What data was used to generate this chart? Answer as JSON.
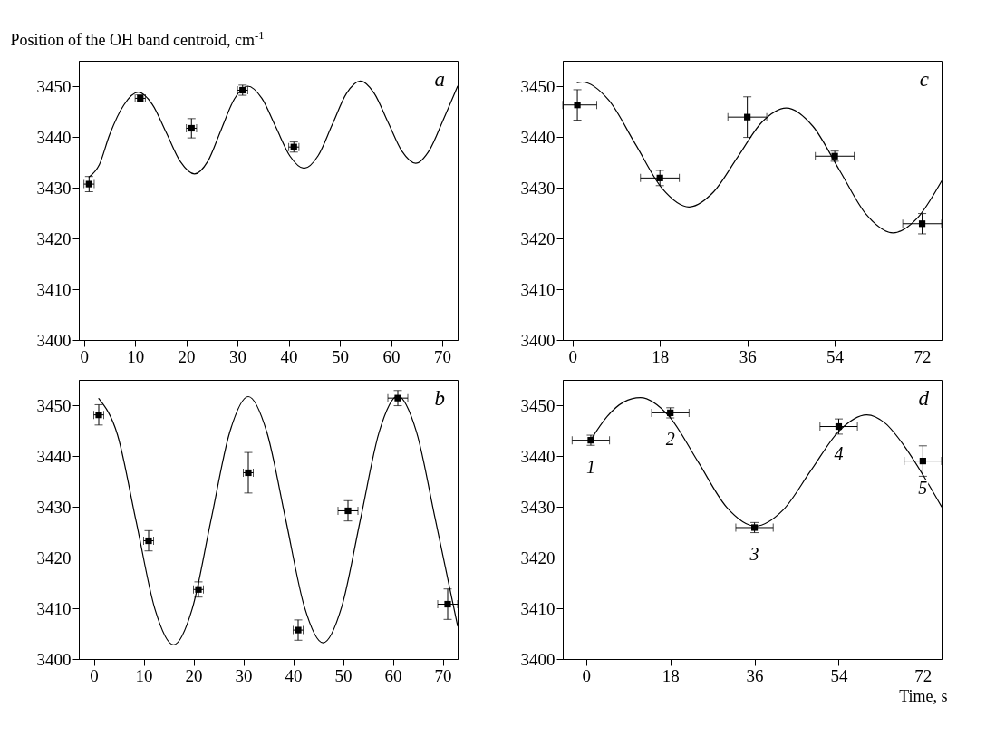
{
  "chart_data": [
    {
      "type": "scatter",
      "ylabel": "Position of the OH band centroid, cm$^{-1}$",
      "annotations": [
        "a"
      ],
      "xlim": [
        -1,
        73
      ],
      "xticks": [
        0,
        10,
        20,
        30,
        40,
        50,
        60,
        70
      ],
      "ylim": [
        3400,
        3455
      ],
      "yticks": [
        3400,
        3410,
        3420,
        3430,
        3440,
        3450
      ],
      "series": [
        {
          "color": "#000000",
          "marker": "square",
          "x": [
            1,
            11,
            21,
            31,
            41
          ],
          "values": [
            3430.7,
            3447.6,
            3441.7,
            3449.2,
            3438.0
          ],
          "errors": [
            1.5,
            0.7,
            1.9,
            1.0,
            1.0
          ],
          "xerrors": [
            1,
            1,
            1,
            1,
            1
          ]
        },
        {
          "type": "line",
          "color": "#000000",
          "x": [
            1,
            3,
            5,
            7.8,
            10.6,
            13.35,
            16.1,
            18.85,
            21.6,
            24.2,
            26.8,
            29.4,
            32,
            34.75,
            37.5,
            40.25,
            43,
            45.75,
            48.5,
            51.25,
            54,
            56.7,
            59.4,
            62.1,
            64.8,
            67.5,
            70.2,
            73
          ],
          "values": [
            3432.1,
            3434.5,
            3440.4,
            3446.3,
            3448.8,
            3446.4,
            3440.8,
            3435.1,
            3432.7,
            3435.2,
            3441.4,
            3447.5,
            3450,
            3447.6,
            3441.9,
            3436.2,
            3433.8,
            3436.3,
            3442.4,
            3448.5,
            3451,
            3448.6,
            3442.9,
            3437.2,
            3434.8,
            3437.4,
            3443.4,
            3450
          ]
        }
      ]
    },
    {
      "type": "scatter",
      "annotations": [
        "c"
      ],
      "xlim": [
        -2,
        76
      ],
      "xticks": [
        0,
        18,
        36,
        54,
        72
      ],
      "ylim": [
        3400,
        3455
      ],
      "yticks": [
        3400,
        3410,
        3420,
        3430,
        3440,
        3450
      ],
      "series": [
        {
          "color": "#000000",
          "marker": "square",
          "x": [
            1,
            18,
            36,
            54,
            72
          ],
          "values": [
            3446.3,
            3431.9,
            3443.9,
            3436.2,
            3422.9
          ],
          "errors": [
            3,
            1.5,
            4,
            1,
            2
          ],
          "xerrors": [
            [
              -2,
              5
            ],
            4,
            4,
            4,
            4
          ]
        },
        {
          "type": "line",
          "color": "#000000",
          "x": [
            1,
            2,
            7.5,
            13,
            18.5,
            24,
            29,
            34,
            39,
            44,
            49.5,
            55,
            60.5,
            66,
            71,
            76
          ],
          "values": [
            3450.7,
            3450.8,
            3447.2,
            3438.5,
            3429.8,
            3426.2,
            3429.1,
            3436.0,
            3442.9,
            3445.7,
            3442.1,
            3433.4,
            3424.7,
            3421.1,
            3424,
            3431.3
          ]
        }
      ]
    },
    {
      "type": "scatter",
      "annotations": [
        "b"
      ],
      "xlim": [
        -3,
        73
      ],
      "xticks": [
        0,
        10,
        20,
        30,
        40,
        50,
        60,
        70
      ],
      "ylim": [
        3400,
        3455
      ],
      "yticks": [
        3400,
        3410,
        3420,
        3430,
        3440,
        3450
      ],
      "series": [
        {
          "color": "#000000",
          "marker": "square",
          "x": [
            1,
            11,
            21,
            31,
            41,
            51,
            61,
            71
          ],
          "values": [
            3448.1,
            3423.3,
            3413.7,
            3436.7,
            3405.7,
            3429.2,
            3451.4,
            3410.8
          ],
          "errors": [
            2,
            2,
            1.5,
            4,
            2,
            2,
            1.5,
            3
          ],
          "xerrors": [
            1,
            1,
            1,
            1,
            1,
            2,
            2,
            2
          ]
        },
        {
          "type": "line",
          "color": "#000000",
          "x": [
            1,
            4.75,
            8.5,
            12.25,
            16,
            19.75,
            23.5,
            27.25,
            31,
            34.75,
            38.5,
            42.25,
            46,
            49.75,
            53.5,
            57.25,
            61,
            64.75,
            68.5,
            73
          ],
          "values": [
            3451.3,
            3444.2,
            3427.1,
            3409.9,
            3402.8,
            3409.9,
            3427.3,
            3444.6,
            3451.7,
            3444.6,
            3427.5,
            3410.3,
            3403.2,
            3410.3,
            3427.5,
            3444.7,
            3451.8,
            3444.7,
            3427.6,
            3406.5
          ]
        }
      ]
    },
    {
      "type": "scatter",
      "xlabel": "Time, s",
      "annotations": [
        "d",
        {
          "text": "1",
          "x": 1,
          "y": 3443.1
        },
        {
          "text": "2",
          "x": 18,
          "y": 3448.5
        },
        {
          "text": "3",
          "x": 36,
          "y": 3425.9
        },
        {
          "text": "4",
          "x": 54,
          "y": 3445.8
        },
        {
          "text": "5",
          "x": 72,
          "y": 3439.0
        }
      ],
      "xlim": [
        -5,
        76
      ],
      "xticks": [
        0,
        18,
        36,
        54,
        72
      ],
      "ylim": [
        3400,
        3455
      ],
      "yticks": [
        3400,
        3410,
        3420,
        3430,
        3440,
        3450
      ],
      "series": [
        {
          "color": "#000000",
          "marker": "square",
          "x": [
            1,
            18,
            36,
            54,
            72
          ],
          "values": [
            3443.1,
            3448.5,
            3425.9,
            3445.8,
            3439.0
          ],
          "errors": [
            1,
            1,
            1,
            1.5,
            3
          ],
          "xerrors": [
            4,
            4,
            4,
            4,
            4
          ]
        },
        {
          "type": "line",
          "color": "#000000",
          "x": [
            1,
            4.5,
            8,
            11.6,
            17.75,
            23.9,
            30.05,
            36.2,
            42.15,
            48.1,
            54.05,
            60,
            64,
            68,
            72,
            76
          ],
          "values": [
            3443.2,
            3447.8,
            3450.6,
            3451.5,
            3447.8,
            3438.9,
            3429.9,
            3426.2,
            3429.4,
            3437.2,
            3444.9,
            3448.1,
            3446.4,
            3442,
            3436.3,
            3430
          ]
        }
      ]
    }
  ]
}
